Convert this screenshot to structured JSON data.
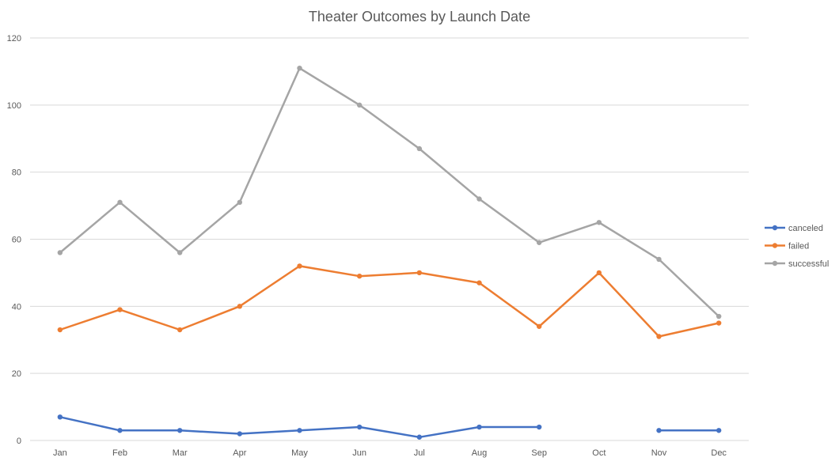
{
  "chart_data": {
    "type": "line",
    "title": "Theater Outcomes by Launch Date",
    "xlabel": "",
    "ylabel": "",
    "categories": [
      "Jan",
      "Feb",
      "Mar",
      "Apr",
      "May",
      "Jun",
      "Jul",
      "Aug",
      "Sep",
      "Oct",
      "Nov",
      "Dec"
    ],
    "ylim": [
      0,
      120
    ],
    "yticks": [
      0,
      20,
      40,
      60,
      80,
      100,
      120
    ],
    "grid": true,
    "legend": "right",
    "series": [
      {
        "name": "canceled",
        "color": "#4472c4",
        "values": [
          7,
          3,
          3,
          2,
          3,
          4,
          1,
          4,
          4,
          null,
          3,
          3
        ]
      },
      {
        "name": "failed",
        "color": "#ed7d31",
        "values": [
          33,
          39,
          33,
          40,
          52,
          49,
          50,
          47,
          34,
          50,
          31,
          35
        ]
      },
      {
        "name": "successful",
        "color": "#a5a5a5",
        "values": [
          56,
          71,
          56,
          71,
          111,
          100,
          87,
          72,
          59,
          65,
          54,
          37
        ]
      }
    ]
  }
}
